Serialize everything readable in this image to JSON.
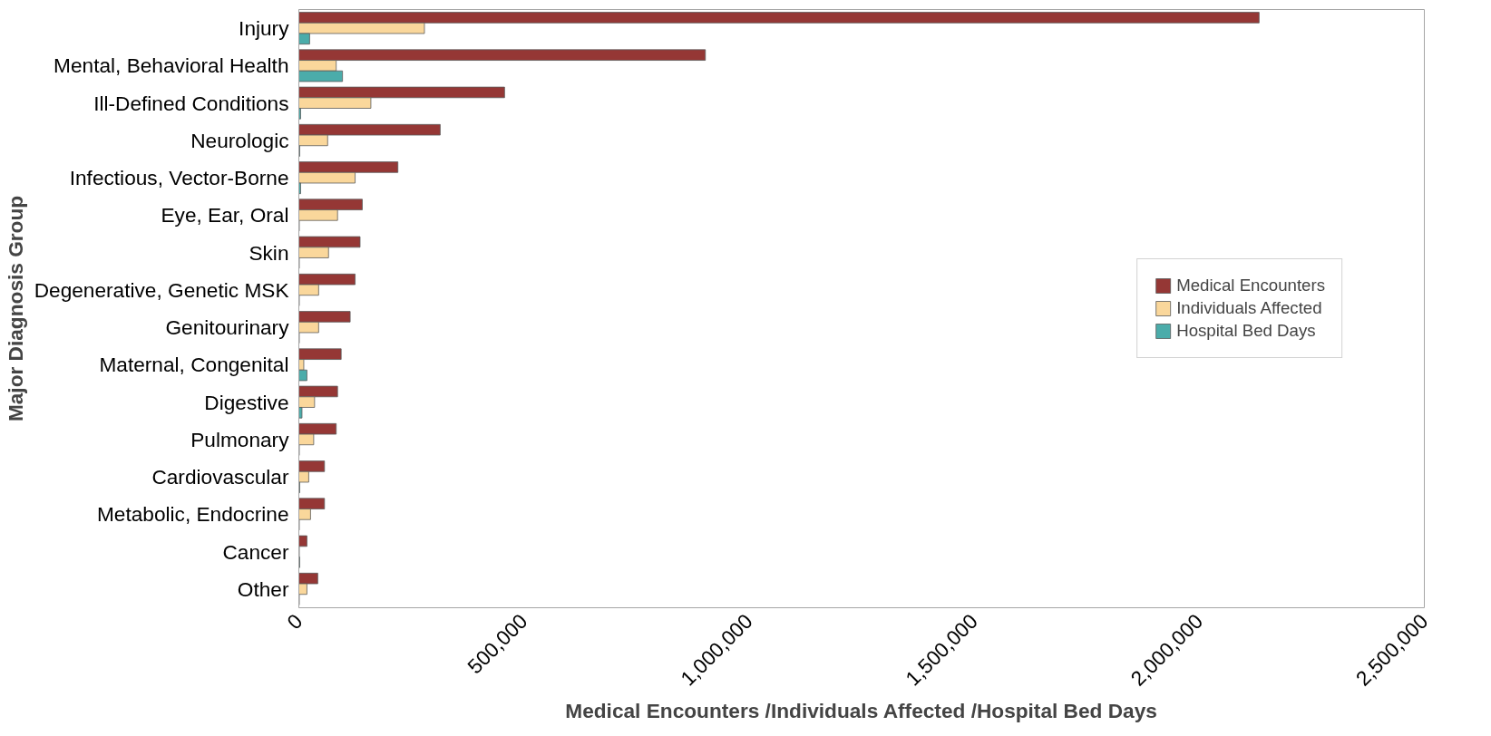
{
  "chart_data": {
    "type": "bar",
    "orientation": "horizontal",
    "xlabel": "Medical Encounters /Individuals Affected /Hospital Bed Days",
    "ylabel": "Major Diagnosis Group",
    "categories": [
      "Injury",
      "Mental, Behavioral Health",
      "Ill-Defined Conditions",
      "Neurologic",
      "Infectious, Vector-Borne",
      "Eye, Ear, Oral",
      "Skin",
      "Degenerative, Genetic MSK",
      "Genitourinary",
      "Maternal, Congenital",
      "Digestive",
      "Pulmonary",
      "Cardiovascular",
      "Metabolic, Endocrine",
      "Cancer",
      "Other"
    ],
    "series": [
      {
        "name": "Medical Encounters",
        "color": "#953735",
        "values": [
          2133000,
          903000,
          457000,
          314000,
          220000,
          141000,
          136000,
          125000,
          114000,
          94000,
          86000,
          83000,
          57000,
          57000,
          18000,
          42000
        ]
      },
      {
        "name": "Individuals Affected",
        "color": "#fad79b",
        "values": [
          279000,
          83000,
          160000,
          64000,
          125000,
          86000,
          66000,
          44000,
          44000,
          11000,
          35000,
          33000,
          22000,
          26000,
          1000,
          18000
        ]
      },
      {
        "name": "Hospital Bed Days",
        "color": "#4bacaa",
        "values": [
          24000,
          97000,
          4000,
          2000,
          4000,
          1000,
          1000,
          1000,
          1000,
          18000,
          7000,
          1000,
          2000,
          1000,
          2000,
          1000
        ]
      }
    ],
    "xlim": [
      0,
      2500000
    ],
    "xticks": [
      {
        "value": 0,
        "label": "0"
      },
      {
        "value": 500000,
        "label": "500,000"
      },
      {
        "value": 1000000,
        "label": "1,000,000"
      },
      {
        "value": 1500000,
        "label": "1,500,000"
      },
      {
        "value": 2000000,
        "label": "2,000,000"
      },
      {
        "value": 2500000,
        "label": "2,500,000"
      }
    ],
    "grid": false,
    "legend": "right"
  }
}
